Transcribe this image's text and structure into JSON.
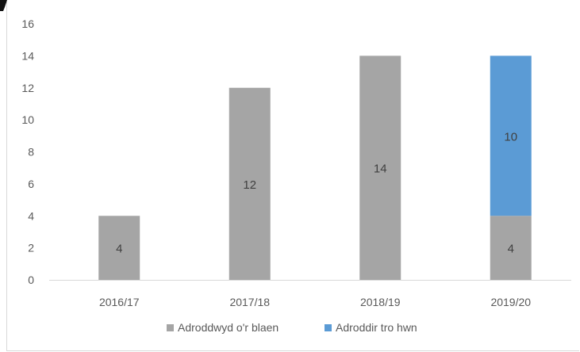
{
  "chart_data": {
    "type": "bar",
    "stacked": true,
    "categories": [
      "2016/17",
      "2017/18",
      "2018/19",
      "2019/20"
    ],
    "series": [
      {
        "name": "Adroddwyd o'r blaen",
        "values": [
          4,
          12,
          14,
          4
        ],
        "color": "#a5a5a5",
        "labels": [
          "4",
          "12",
          "14",
          "4"
        ]
      },
      {
        "name": "Adroddir tro hwn",
        "values": [
          0,
          0,
          0,
          10
        ],
        "color": "#5b9bd5",
        "labels": [
          "",
          "",
          "",
          "10"
        ]
      }
    ],
    "y_ticks": [
      "0",
      "2",
      "4",
      "6",
      "8",
      "10",
      "12",
      "14",
      "16"
    ],
    "ylim": [
      0,
      16
    ],
    "grid": false,
    "legend": "bottom"
  }
}
